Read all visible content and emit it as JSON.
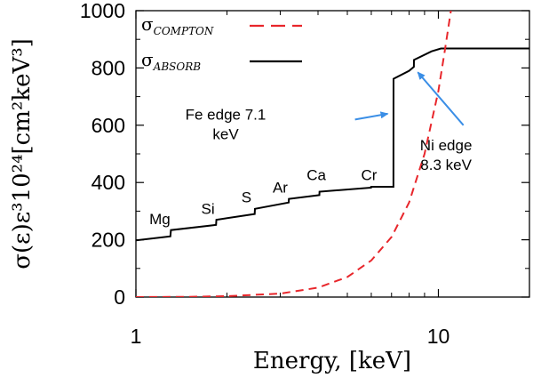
{
  "chart_data": {
    "type": "line",
    "x_scale": "log",
    "xlim": [
      1,
      20
    ],
    "ylim": [
      0,
      1000
    ],
    "xlabel": "Energy, [keV]",
    "ylabel": "σ(ε)ε³10²⁴[cm²keV³]",
    "xticks": [
      {
        "value": 1,
        "label": "1"
      },
      {
        "value": 10,
        "label": "10"
      }
    ],
    "yticks": [
      {
        "value": 0,
        "label": "0"
      },
      {
        "value": 200,
        "label": "200"
      },
      {
        "value": 400,
        "label": "400"
      },
      {
        "value": 600,
        "label": "600"
      },
      {
        "value": 800,
        "label": "800"
      },
      {
        "value": 1000,
        "label": "1000"
      }
    ],
    "legend": {
      "position": "top-left",
      "entries": [
        {
          "symbol": "σ",
          "subscript": "COMPTON",
          "style": "dashed",
          "color": "#e8262b"
        },
        {
          "symbol": "σ",
          "subscript": "ABSORB",
          "style": "solid",
          "color": "#000000"
        }
      ]
    },
    "series": [
      {
        "name": "σ ABSORB",
        "style": "solid",
        "color": "#000000",
        "points": [
          [
            1.0,
            198
          ],
          [
            1.3,
            212
          ],
          [
            1.305,
            234
          ],
          [
            1.84,
            252
          ],
          [
            1.845,
            270
          ],
          [
            2.47,
            290
          ],
          [
            2.475,
            308
          ],
          [
            3.2,
            330
          ],
          [
            3.205,
            343
          ],
          [
            4.04,
            356
          ],
          [
            4.045,
            368
          ],
          [
            5.99,
            382
          ],
          [
            5.995,
            385
          ],
          [
            7.1,
            385
          ],
          [
            7.105,
            762
          ],
          [
            8.0,
            790
          ],
          [
            8.3,
            804
          ],
          [
            8.305,
            828
          ],
          [
            9.5,
            858
          ],
          [
            10.2,
            868
          ],
          [
            20.0,
            868
          ]
        ]
      },
      {
        "name": "σ COMPTON",
        "style": "dashed",
        "color": "#e8262b",
        "points": [
          [
            1.0,
            0
          ],
          [
            1.5,
            1
          ],
          [
            2.0,
            3
          ],
          [
            3.0,
            12
          ],
          [
            4.0,
            33
          ],
          [
            5.0,
            70
          ],
          [
            6.0,
            128
          ],
          [
            7.0,
            210
          ],
          [
            8.0,
            330
          ],
          [
            9.0,
            500
          ],
          [
            10.0,
            720
          ],
          [
            10.5,
            860
          ],
          [
            11.0,
            1000
          ]
        ]
      }
    ],
    "element_labels": [
      {
        "text": "Mg",
        "energy": 1.2,
        "value": 255
      },
      {
        "text": "Si",
        "energy": 1.73,
        "value": 290
      },
      {
        "text": "S",
        "energy": 2.32,
        "value": 330
      },
      {
        "text": "Ar",
        "energy": 3.0,
        "value": 365
      },
      {
        "text": "Ca",
        "energy": 3.95,
        "value": 408
      },
      {
        "text": "Cr",
        "energy": 5.9,
        "value": 408
      }
    ],
    "annotations": [
      {
        "lines": [
          "Fe edge 7.1",
          "keV"
        ],
        "text_energy": 1.98,
        "text_value": 620,
        "arrow_from": [
          5.3,
          620
        ],
        "arrow_to": [
          6.8,
          640
        ],
        "arrow_color": "#3a8ee6"
      },
      {
        "lines": [
          "Ni edge",
          "8.3 keV"
        ],
        "text_energy": 10.6,
        "text_value": 512,
        "arrow_from": [
          12.1,
          600
        ],
        "arrow_to": [
          8.55,
          785
        ],
        "arrow_color": "#3a8ee6"
      }
    ]
  }
}
